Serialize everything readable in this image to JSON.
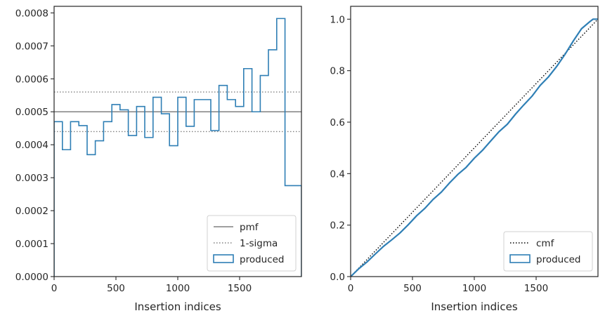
{
  "chart_data": [
    {
      "type": "step",
      "xlabel": "Insertion indices",
      "ylabel": "",
      "xlim": [
        0,
        2000
      ],
      "ylim": [
        0,
        0.00082
      ],
      "xticks": [
        0,
        500,
        1000,
        1500
      ],
      "xtick_labels": [
        "0",
        "500",
        "1000",
        "1500"
      ],
      "yticks": [
        0,
        0.0001,
        0.0002,
        0.0003,
        0.0004,
        0.0005,
        0.0006,
        0.0007,
        0.0008
      ],
      "ytick_labels": [
        "0.0000",
        "0.0001",
        "0.0002",
        "0.0003",
        "0.0004",
        "0.0005",
        "0.0006",
        "0.0007",
        "0.0008"
      ],
      "reference_lines": [
        {
          "name": "pmf",
          "y": 0.0005,
          "style": "solid",
          "color": "#808080"
        },
        {
          "name": "1-sigma",
          "y": 0.00056,
          "style": "dotted",
          "color": "#808080"
        },
        {
          "name": "1-sigma",
          "y": 0.00044,
          "style": "dotted",
          "color": "#808080"
        }
      ],
      "histogram": {
        "name": "produced",
        "color": "#2f7fb5",
        "bin_edges": [
          0,
          67,
          133,
          200,
          267,
          333,
          400,
          467,
          533,
          600,
          667,
          733,
          800,
          867,
          933,
          1000,
          1067,
          1133,
          1200,
          1267,
          1333,
          1400,
          1467,
          1533,
          1600,
          1667,
          1733,
          1800,
          1867,
          1933,
          2000
        ],
        "values": [
          0.00047,
          0.000385,
          0.00047,
          0.000458,
          0.00037,
          0.000412,
          0.00047,
          0.000522,
          0.000506,
          0.000428,
          0.000516,
          0.000422,
          0.000544,
          0.000494,
          0.000397,
          0.000544,
          0.000456,
          0.000537,
          0.000537,
          0.000443,
          0.00058,
          0.000537,
          0.000516,
          0.000631,
          0.0005,
          0.00061,
          0.000688,
          0.000783,
          0.000276,
          0.000276
        ]
      },
      "legend": {
        "position": "lower right",
        "entries": [
          "pmf",
          "1-sigma",
          "produced"
        ]
      }
    },
    {
      "type": "line",
      "xlabel": "Insertion indices",
      "ylabel": "",
      "xlim": [
        0,
        2000
      ],
      "ylim": [
        0,
        1.05
      ],
      "xticks": [
        0,
        500,
        1000,
        1500
      ],
      "xtick_labels": [
        "0",
        "500",
        "1000",
        "1500"
      ],
      "yticks": [
        0,
        0.2,
        0.4,
        0.6,
        0.8,
        1.0
      ],
      "ytick_labels": [
        "0.0",
        "0.2",
        "0.4",
        "0.6",
        "0.8",
        "1.0"
      ],
      "series": [
        {
          "name": "cmf",
          "style": "dotted",
          "color": "#000000",
          "x": [
            0,
            2000
          ],
          "y": [
            0,
            1.0
          ]
        },
        {
          "name": "produced",
          "style": "solid",
          "color": "#2f7fb5",
          "x": [
            0,
            67,
            133,
            200,
            267,
            333,
            400,
            467,
            533,
            600,
            667,
            733,
            800,
            867,
            933,
            1000,
            1067,
            1133,
            1200,
            1267,
            1333,
            1400,
            1467,
            1533,
            1600,
            1667,
            1733,
            1800,
            1867,
            1933,
            1960,
            1990,
            2000
          ],
          "y": [
            0,
            0.031,
            0.057,
            0.088,
            0.118,
            0.143,
            0.17,
            0.202,
            0.236,
            0.265,
            0.3,
            0.328,
            0.364,
            0.397,
            0.424,
            0.46,
            0.491,
            0.527,
            0.563,
            0.592,
            0.631,
            0.667,
            0.701,
            0.743,
            0.776,
            0.817,
            0.863,
            0.915,
            0.963,
            0.99,
            1.0,
            1.0,
            1.0
          ]
        }
      ],
      "legend": {
        "position": "lower right",
        "entries": [
          "cmf",
          "produced"
        ]
      }
    }
  ]
}
